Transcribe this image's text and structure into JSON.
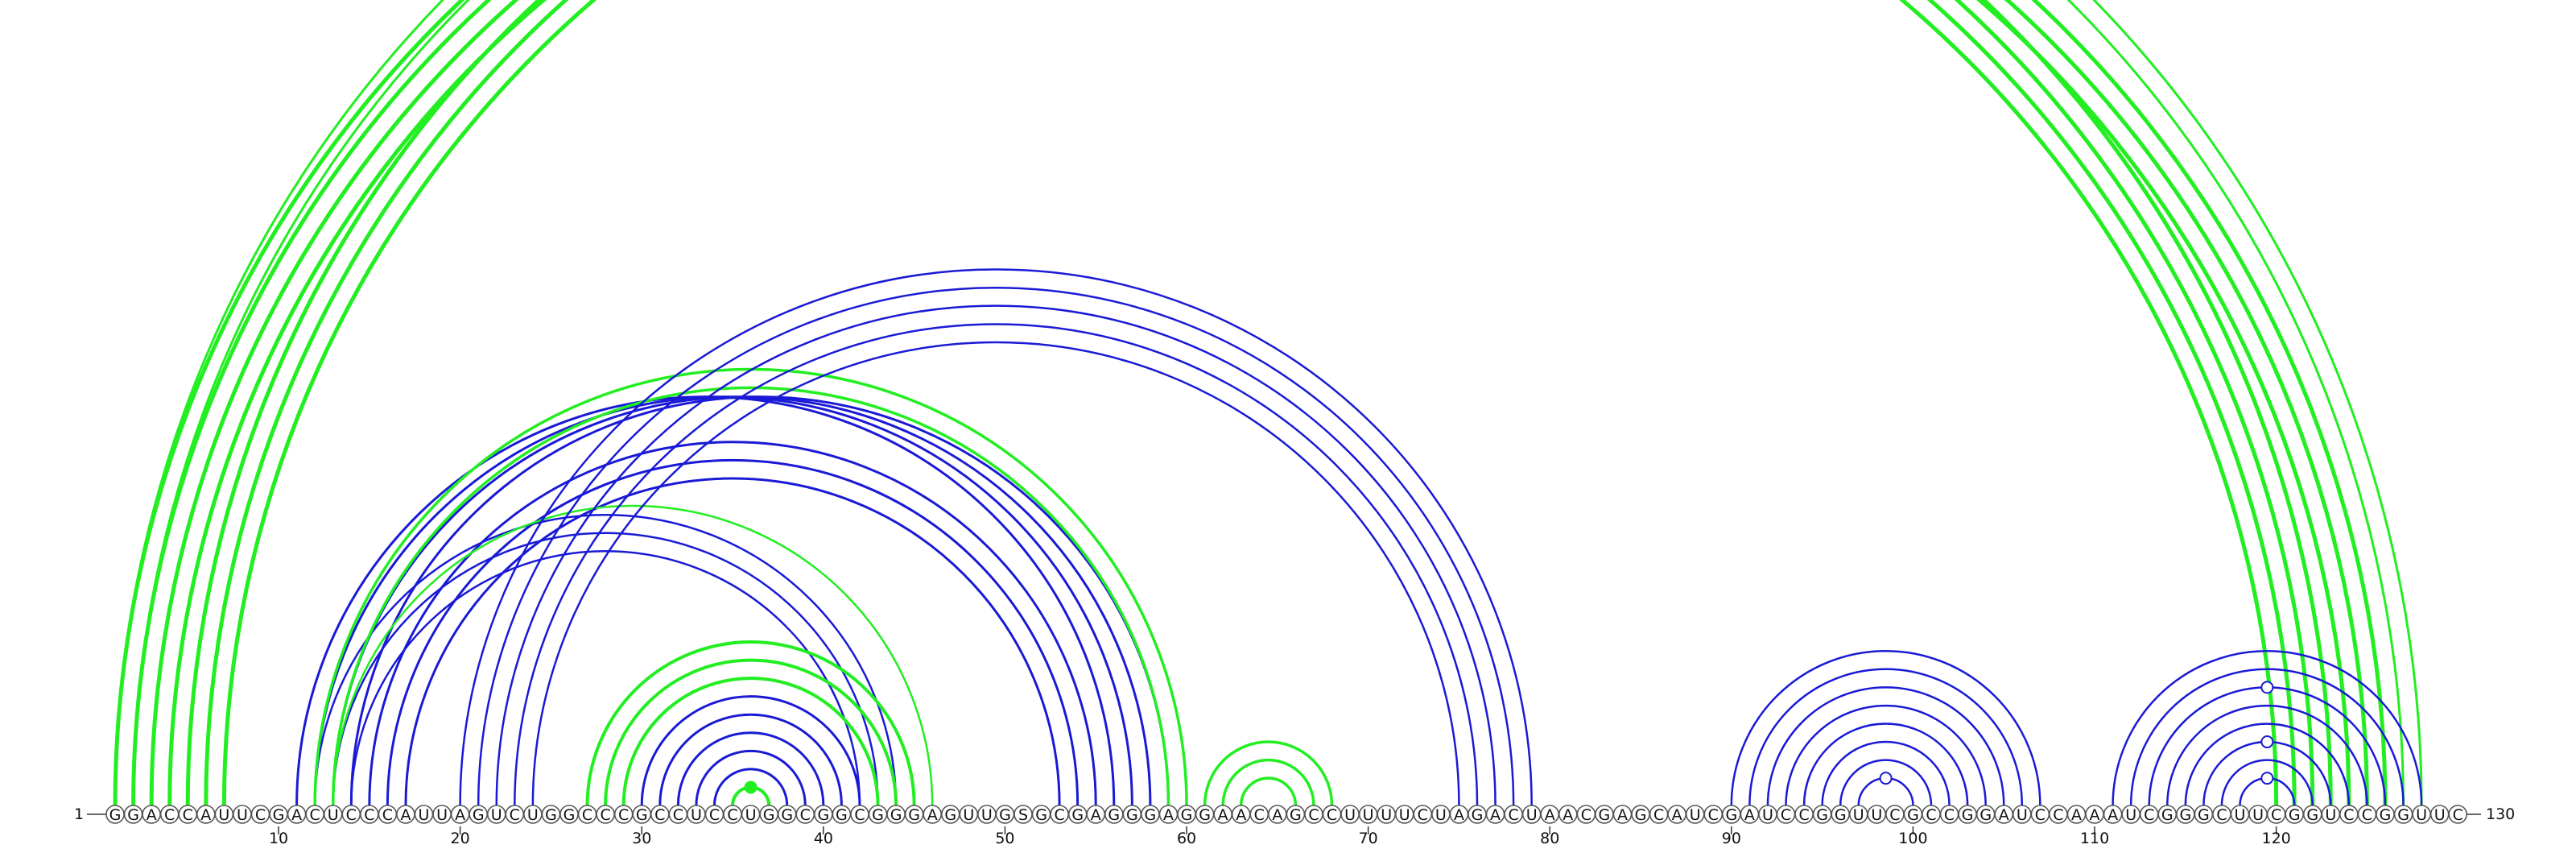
{
  "sequence": "GGACCAUUCGACUCCCAUUAGUCUGGCCCGCCUCCUGGCGGCGGGAGUUGSGCGAGGGAGGAACAGCCUUUUCUAGACUAACGAGCAUCGAUCCGGUUCGCCGGAUCCAAAUCGGGCUUCGGUCCGGUUC",
  "start_label": "1",
  "end_label": "130",
  "ticks": [
    10,
    20,
    30,
    40,
    50,
    60,
    70,
    80,
    90,
    100,
    110,
    120
  ],
  "colors": {
    "green": "#22ee22",
    "blue": "#1a1ad6"
  },
  "arc_groups": [
    {
      "color": "green",
      "width": 5,
      "pairs": [
        [
          1,
          123
        ],
        [
          2,
          122
        ],
        [
          3,
          121
        ],
        [
          4,
          120
        ]
      ]
    },
    {
      "color": "green",
      "width": 5,
      "pairs": [
        [
          5,
          126
        ],
        [
          6,
          125
        ],
        [
          7,
          124
        ]
      ]
    },
    {
      "color": "green",
      "width": 3,
      "pairs": [
        [
          1,
          128
        ],
        [
          2,
          127
        ]
      ]
    },
    {
      "color": "blue",
      "width": 3,
      "pairs": [
        [
          11,
          56
        ],
        [
          12,
          57
        ],
        [
          13,
          58
        ],
        [
          14,
          59
        ],
        [
          15,
          55
        ],
        [
          16,
          54
        ],
        [
          17,
          53
        ]
      ]
    },
    {
      "color": "blue",
      "width": 2.5,
      "pairs": [
        [
          12,
          44
        ],
        [
          13,
          43
        ],
        [
          14,
          42
        ]
      ]
    },
    {
      "color": "green",
      "width": 3.5,
      "pairs": [
        [
          12,
          60
        ],
        [
          13,
          59
        ]
      ]
    },
    {
      "color": "green",
      "width": 2.5,
      "pairs": [
        [
          13,
          46
        ]
      ]
    },
    {
      "color": "blue",
      "width": 2.5,
      "pairs": [
        [
          20,
          79
        ],
        [
          21,
          78
        ],
        [
          22,
          77
        ],
        [
          23,
          76
        ],
        [
          24,
          75
        ]
      ]
    },
    {
      "color": "green",
      "width": 4,
      "pairs": [
        [
          27,
          45
        ],
        [
          28,
          44
        ],
        [
          29,
          43
        ]
      ]
    },
    {
      "color": "blue",
      "width": 3,
      "pairs": [
        [
          30,
          42
        ],
        [
          31,
          41
        ],
        [
          32,
          40
        ],
        [
          33,
          39
        ],
        [
          34,
          38
        ]
      ]
    },
    {
      "color": "green",
      "width": 4,
      "pairs": [
        [
          35,
          37
        ]
      ]
    },
    {
      "color": "green",
      "width": 3.5,
      "pairs": [
        [
          61,
          68
        ],
        [
          62,
          67
        ],
        [
          63,
          66
        ]
      ]
    },
    {
      "color": "blue",
      "width": 2.5,
      "pairs": [
        [
          90,
          107
        ],
        [
          91,
          106
        ],
        [
          92,
          105
        ],
        [
          93,
          104
        ],
        [
          94,
          103
        ],
        [
          95,
          102
        ],
        [
          96,
          101
        ],
        [
          97,
          100
        ]
      ]
    },
    {
      "color": "blue",
      "width": 2.5,
      "pairs": [
        [
          111,
          128
        ],
        [
          112,
          127
        ],
        [
          113,
          126
        ],
        [
          114,
          125
        ],
        [
          115,
          124
        ],
        [
          116,
          123
        ],
        [
          117,
          122
        ],
        [
          118,
          121
        ]
      ]
    }
  ]
}
